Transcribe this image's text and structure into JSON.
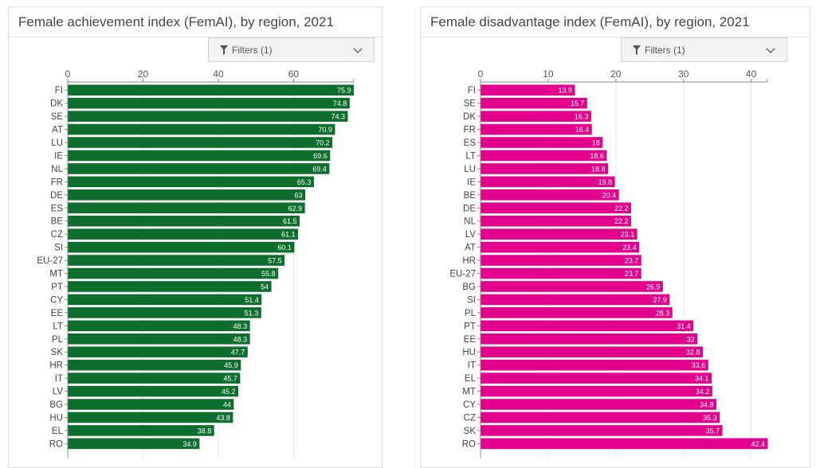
{
  "panels": [
    {
      "title": "Female achievement index (FemAI), by region, 2021",
      "filter_label": "Filters (1)",
      "icons": {
        "filter": "filter-icon",
        "dropdown": "chevron-down-icon"
      }
    },
    {
      "title": "Female disadvantage index (FemAI), by region, 2021",
      "filter_label": "Filters (1)",
      "icons": {
        "filter": "filter-icon",
        "dropdown": "chevron-down-icon"
      }
    }
  ],
  "chart_data": [
    {
      "type": "bar",
      "orientation": "horizontal",
      "title": "Female achievement index (FemAI), by region, 2021",
      "categories": [
        "FI",
        "DK",
        "SE",
        "AT",
        "LU",
        "IE",
        "NL",
        "FR",
        "DE",
        "ES",
        "BE",
        "CZ",
        "SI",
        "EU-27",
        "MT",
        "PT",
        "CY",
        "EE",
        "LT",
        "PL",
        "SK",
        "HR",
        "IT",
        "LV",
        "BG",
        "HU",
        "EL",
        "RO"
      ],
      "values": [
        75.9,
        74.8,
        74.3,
        70.9,
        70.2,
        69.6,
        69.4,
        65.3,
        63,
        62.9,
        61.5,
        61.1,
        60.1,
        57.5,
        55.8,
        54,
        51.4,
        51.3,
        48.3,
        48.3,
        47.7,
        45.9,
        45.7,
        45.2,
        44,
        43.8,
        38.8,
        34.9
      ],
      "xticks": [
        0,
        20,
        40,
        60
      ],
      "xlim": [
        0,
        76
      ],
      "color": "#0d6e2e",
      "axis_position": "top",
      "gridlines": true,
      "data_labels": true
    },
    {
      "type": "bar",
      "orientation": "horizontal",
      "title": "Female disadvantage index (FemAI), by region, 2021",
      "categories": [
        "FI",
        "SE",
        "DK",
        "FR",
        "ES",
        "LT",
        "LU",
        "IE",
        "BE",
        "DE",
        "NL",
        "LV",
        "AT",
        "HR",
        "EU-27",
        "BG",
        "SI",
        "PL",
        "PT",
        "EE",
        "HU",
        "IT",
        "EL",
        "MT",
        "CY",
        "CZ",
        "SK",
        "RO"
      ],
      "values": [
        13.9,
        15.7,
        16.3,
        16.4,
        18,
        18.6,
        18.8,
        19.8,
        20.4,
        22.2,
        22.2,
        23.1,
        23.4,
        23.7,
        23.7,
        26.9,
        27.9,
        28.3,
        31.4,
        32,
        32.8,
        33.6,
        34.1,
        34.2,
        34.8,
        35.3,
        35.7,
        42.4
      ],
      "xticks": [
        0,
        10,
        20,
        30,
        40
      ],
      "xlim": [
        0,
        42.4
      ],
      "color": "#e3008c",
      "axis_position": "top",
      "gridlines": true,
      "data_labels": true
    }
  ]
}
